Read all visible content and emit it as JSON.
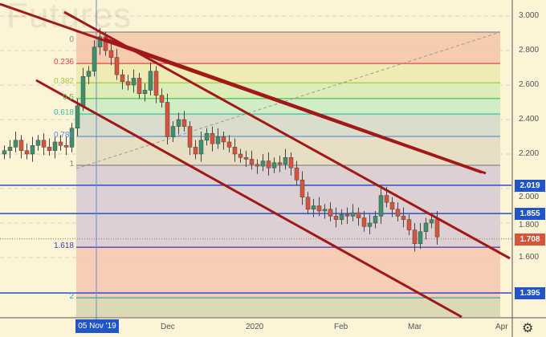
{
  "watermark": "Futures",
  "colors": {
    "background": "#fdf3d6",
    "up": "#3f8f6a",
    "down": "#d9533c",
    "level_line": "#2a50c8",
    "trend": "#a01818",
    "last_price": "#d9533c"
  },
  "y_axis": {
    "ticks": [
      "3.000",
      "2.800",
      "2.600",
      "2.400",
      "2.200",
      "2.000",
      "1.800",
      "1.600"
    ],
    "range": [
      1.3,
      3.0
    ]
  },
  "price_tags": [
    {
      "value": "2.019",
      "color": "#1f55c8"
    },
    {
      "value": "1.855",
      "color": "#1f55c8"
    },
    {
      "value": "1.708",
      "color": "#d9533c"
    },
    {
      "value": "1.395",
      "color": "#1f55c8"
    }
  ],
  "fib_levels": [
    {
      "label": "0",
      "price": 2.907,
      "color": "#888888"
    },
    {
      "label": "0.236",
      "price": 2.725,
      "color": "#e04848"
    },
    {
      "label": "0.382",
      "price": 2.613,
      "color": "#9cc83c"
    },
    {
      "label": "0.5",
      "price": 2.522,
      "color": "#4cc84c"
    },
    {
      "label": "0.618",
      "price": 2.432,
      "color": "#38c0a0"
    },
    {
      "label": "0.786",
      "price": 2.302,
      "color": "#5090d8"
    },
    {
      "label": "1",
      "price": 2.135,
      "color": "#888888"
    },
    {
      "label": "1.618",
      "price": 1.66,
      "color": "#3838c8"
    },
    {
      "label": "2",
      "price": 1.367,
      "color": "#38a0c0"
    }
  ],
  "x_axis": {
    "labels": [
      "Dec",
      "2020",
      "Feb",
      "Mar",
      "Apr"
    ],
    "crosshair_label": "05 Nov '19"
  },
  "closes": [
    2.22,
    2.24,
    2.28,
    2.22,
    2.2,
    2.25,
    2.28,
    2.24,
    2.22,
    2.27,
    2.25,
    2.24,
    2.35,
    2.48,
    2.65,
    2.68,
    2.82,
    2.88,
    2.8,
    2.76,
    2.66,
    2.62,
    2.6,
    2.64,
    2.55,
    2.57,
    2.68,
    2.54,
    2.5,
    2.3,
    2.36,
    2.4,
    2.36,
    2.24,
    2.2,
    2.28,
    2.32,
    2.26,
    2.3,
    2.27,
    2.24,
    2.2,
    2.18,
    2.17,
    2.14,
    2.13,
    2.16,
    2.12,
    2.15,
    2.14,
    2.18,
    2.12,
    2.05,
    1.95,
    1.88,
    1.9,
    1.87,
    1.88,
    1.84,
    1.82,
    1.85,
    1.84,
    1.86,
    1.83,
    1.78,
    1.8,
    1.84,
    1.96,
    1.92,
    1.88,
    1.84,
    1.82,
    1.76,
    1.68,
    1.75,
    1.8,
    1.82,
    1.72
  ]
}
